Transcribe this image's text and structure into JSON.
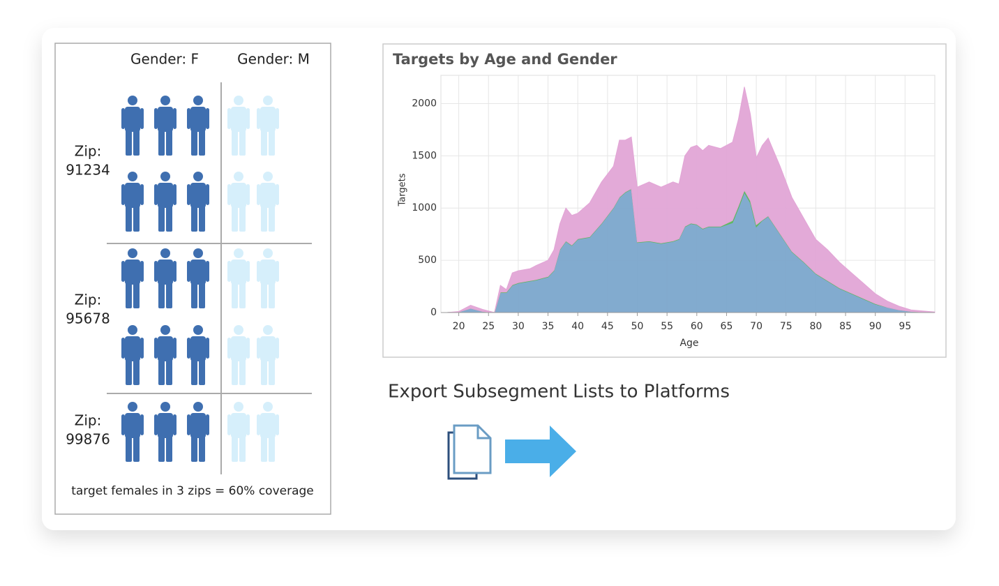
{
  "panel": {
    "headers": [
      "Gender: F",
      "Gender: M"
    ],
    "zips": [
      {
        "label": "Zip:",
        "code": "91234"
      },
      {
        "label": "Zip:",
        "code": "95678"
      },
      {
        "label": "Zip:",
        "code": "99876"
      }
    ],
    "caption": "target females in 3 zips = 60% coverage"
  },
  "chart_data": {
    "type": "stacked_area",
    "title": "Targets by Age and Gender",
    "x_label": "Age",
    "y_label": "Targets",
    "x": [
      18,
      20,
      22,
      24,
      26,
      27,
      28,
      29,
      30,
      32,
      33,
      35,
      36,
      37,
      38,
      39,
      40,
      42,
      44,
      46,
      47,
      48,
      49,
      50,
      52,
      54,
      56,
      57,
      58,
      59,
      60,
      61,
      62,
      64,
      66,
      67,
      68,
      69,
      70,
      71,
      72,
      74,
      76,
      78,
      80,
      82,
      84,
      86,
      88,
      90,
      92,
      94,
      96,
      98,
      100
    ],
    "series": [
      {
        "color": "#7ba7cc",
        "values": [
          0,
          5,
          40,
          10,
          0,
          190,
          190,
          260,
          280,
          300,
          310,
          340,
          400,
          600,
          680,
          640,
          700,
          720,
          850,
          1000,
          1100,
          1150,
          1180,
          670,
          680,
          660,
          680,
          700,
          820,
          850,
          840,
          800,
          820,
          820,
          860,
          1000,
          1150,
          1050,
          820,
          880,
          920,
          750,
          580,
          480,
          370,
          300,
          230,
          180,
          130,
          80,
          50,
          25,
          10,
          5,
          0
        ]
      },
      {
        "color": "#5cb85c",
        "values": [
          0,
          0,
          0,
          0,
          0,
          5,
          5,
          5,
          5,
          5,
          5,
          5,
          5,
          5,
          5,
          5,
          5,
          5,
          5,
          5,
          5,
          5,
          5,
          5,
          5,
          5,
          5,
          5,
          5,
          5,
          5,
          5,
          5,
          5,
          20,
          20,
          20,
          20,
          20,
          5,
          5,
          5,
          5,
          5,
          5,
          5,
          5,
          5,
          5,
          5,
          0,
          0,
          0,
          0,
          0
        ]
      },
      {
        "color": "#e2a5d6",
        "values": [
          0,
          5,
          30,
          20,
          0,
          65,
          25,
          115,
          115,
          115,
          135,
          155,
          195,
          245,
          315,
          285,
          245,
          325,
          395,
          395,
          545,
          495,
          495,
          525,
          565,
          535,
          565,
          525,
          675,
          725,
          755,
          745,
          775,
          745,
          750,
          830,
          990,
          830,
          640,
          715,
          745,
          645,
          515,
          415,
          325,
          295,
          245,
          195,
          145,
          95,
          60,
          35,
          15,
          10,
          5
        ]
      }
    ],
    "xlim": [
      17,
      100
    ],
    "ylim": [
      0,
      2270
    ],
    "xticks": [
      20,
      25,
      30,
      35,
      40,
      45,
      50,
      55,
      60,
      65,
      70,
      75,
      80,
      85,
      90,
      95
    ],
    "yticks": [
      0,
      500,
      1000,
      1500,
      2000
    ],
    "grid": true
  },
  "export": {
    "title": "Export Subsegment Lists to Platforms"
  }
}
